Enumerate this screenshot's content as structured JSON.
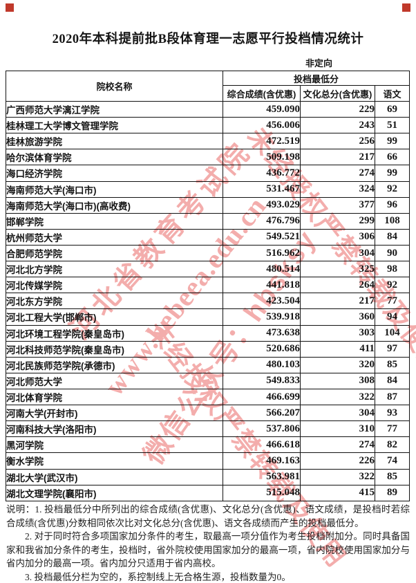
{
  "title": "2020年本科提前批B段体育理一志愿平行投档情况统计",
  "orientation_label": "非定向",
  "table": {
    "headers": {
      "school": "院校名称",
      "min_score_group": "投档最低分",
      "comprehensive": "综合成绩(含优惠)",
      "culture": "文化总分(含优惠)",
      "chinese": "语文"
    },
    "rows": [
      {
        "school": "广西师范大学漓江学院",
        "comprehensive": "459.090",
        "culture": "229",
        "chinese": "69"
      },
      {
        "school": "桂林理工大学博文管理学院",
        "comprehensive": "456.006",
        "culture": "243",
        "chinese": "51"
      },
      {
        "school": "桂林旅游学院",
        "comprehensive": "472.519",
        "culture": "256",
        "chinese": "99"
      },
      {
        "school": "哈尔滨体育学院",
        "comprehensive": "509.198",
        "culture": "217",
        "chinese": "66"
      },
      {
        "school": "海口经济学院",
        "comprehensive": "436.772",
        "culture": "274",
        "chinese": "99"
      },
      {
        "school": "海南师范大学(海口市)",
        "comprehensive": "531.467",
        "culture": "324",
        "chinese": "92"
      },
      {
        "school": "海南师范大学(海口市)(高收费)",
        "comprehensive": "493.029",
        "culture": "377",
        "chinese": "96"
      },
      {
        "school": "邯郸学院",
        "comprehensive": "476.796",
        "culture": "299",
        "chinese": "108"
      },
      {
        "school": "杭州师范大学",
        "comprehensive": "549.521",
        "culture": "306",
        "chinese": "84"
      },
      {
        "school": "合肥师范学院",
        "comprehensive": "516.962",
        "culture": "304",
        "chinese": "90"
      },
      {
        "school": "河北北方学院",
        "comprehensive": "480.514",
        "culture": "325",
        "chinese": "98"
      },
      {
        "school": "河北传媒学院",
        "comprehensive": "441.818",
        "culture": "264",
        "chinese": "92"
      },
      {
        "school": "河北东方学院",
        "comprehensive": "423.504",
        "culture": "217",
        "chinese": "77"
      },
      {
        "school": "河北工程大学(邯郸市)",
        "comprehensive": "539.918",
        "culture": "360",
        "chinese": "94"
      },
      {
        "school": "河北环境工程学院(秦皇岛市)",
        "comprehensive": "473.638",
        "culture": "303",
        "chinese": "104"
      },
      {
        "school": "河北科技师范学院(秦皇岛市)",
        "comprehensive": "520.686",
        "culture": "411",
        "chinese": "97"
      },
      {
        "school": "河北民族师范学院(承德市)",
        "comprehensive": "480.103",
        "culture": "320",
        "chinese": "85"
      },
      {
        "school": "河北师范大学",
        "comprehensive": "549.833",
        "culture": "308",
        "chinese": "84"
      },
      {
        "school": "河北体育学院",
        "comprehensive": "466.699",
        "culture": "322",
        "chinese": "87"
      },
      {
        "school": "河南大学(开封市)",
        "comprehensive": "566.207",
        "culture": "304",
        "chinese": "93"
      },
      {
        "school": "河南科技大学(洛阳市)",
        "comprehensive": "537.806",
        "culture": "310",
        "chinese": "77"
      },
      {
        "school": "黑河学院",
        "comprehensive": "466.618",
        "culture": "274",
        "chinese": "82"
      },
      {
        "school": "衡水学院",
        "comprehensive": "469.163",
        "culture": "226",
        "chinese": "74"
      },
      {
        "school": "湖北大学(武汉市)",
        "comprehensive": "563.981",
        "culture": "322",
        "chinese": "85"
      },
      {
        "school": "湖北文理学院(襄阳市)",
        "comprehensive": "515.048",
        "culture": "415",
        "chinese": "89"
      }
    ]
  },
  "notes": [
    "说明：1. 投档最低分中所列出的综合成绩(含优惠)、文化总分(含优惠)、语文成绩，是投档时若综合成绩(含优惠)分数相同依次比对文化总分(含优惠)、语文各成绩而产生的投档最低分。",
    "2. 对于同时符合多项国家加分条件的考生，取最高一项分值作为考生投档附加分。同时具备国家和我省加分条件的考生，投档时，省外院校使用国家加分的最高一项，省内院校使用国家加分与省内加分的最高一项。省内加分只适用于省内高校。",
    "3. 投档最低分栏为空的，系控制线上无合格生源，投档数量为0。"
  ],
  "watermarks": [
    "河北省教育考试院",
    "www.hebeea.edu.cn",
    "微信公众号：hbsksy",
    "未经授权严禁转载及使用"
  ],
  "colors": {
    "watermark_red": "#e8625f",
    "corner_mark_red": "#c0392b",
    "border_black": "#111111"
  }
}
